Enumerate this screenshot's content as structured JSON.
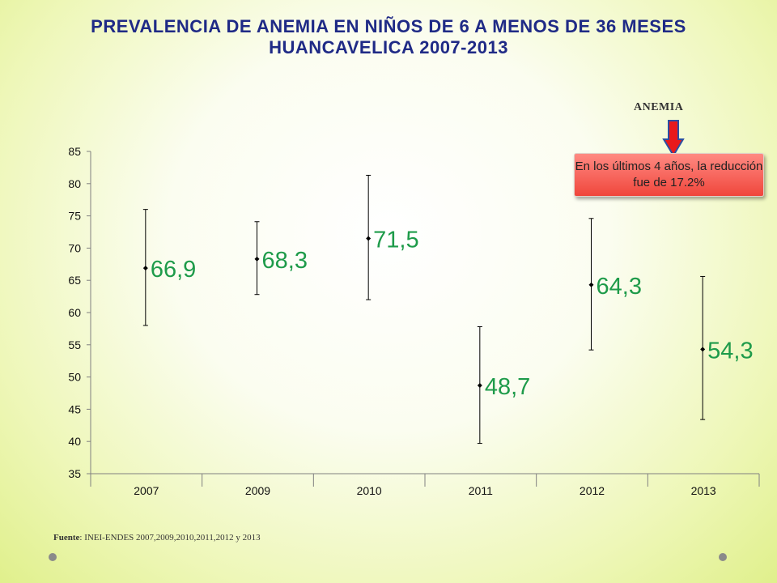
{
  "title_line1": "PREVALENCIA DE ANEMIA EN NIÑOS DE 6 A MENOS DE 36 MESES",
  "title_line2": "HUANCAVELICA  2007-2013",
  "source_label": "Fuente",
  "source_text": ": INEI-ENDES  2007,2009,2010,2011,2012 y 2013",
  "anemia_label": "ANEMIA",
  "callout_text": "En los últimos 4 años,  la reducción fue de 17.2%",
  "colors": {
    "title": "#1f2a86",
    "value_label": "#1e9b4a",
    "arrow_fill": "#e8191c",
    "arrow_outline": "#2b4fa3",
    "callout": "#f0463c"
  },
  "chart_data": {
    "type": "scatter",
    "categories": [
      "2007",
      "2009",
      "2010",
      "2011",
      "2012",
      "2013"
    ],
    "values": [
      66.9,
      68.3,
      71.5,
      48.7,
      64.3,
      54.3
    ],
    "value_labels": [
      "66,9",
      "68,3",
      "71,5",
      "48,7",
      "64,3",
      "54,3"
    ],
    "error_low": [
      58.0,
      62.8,
      62.0,
      39.7,
      54.2,
      43.4
    ],
    "error_high": [
      76.0,
      74.1,
      81.3,
      57.8,
      74.6,
      65.6
    ],
    "y_ticks": [
      "35",
      "40",
      "45",
      "50",
      "55",
      "60",
      "65",
      "70",
      "75",
      "80",
      "85"
    ],
    "ylim": [
      35,
      85
    ],
    "title": "",
    "xlabel": "",
    "ylabel": "",
    "grid": false,
    "legend": "none"
  }
}
